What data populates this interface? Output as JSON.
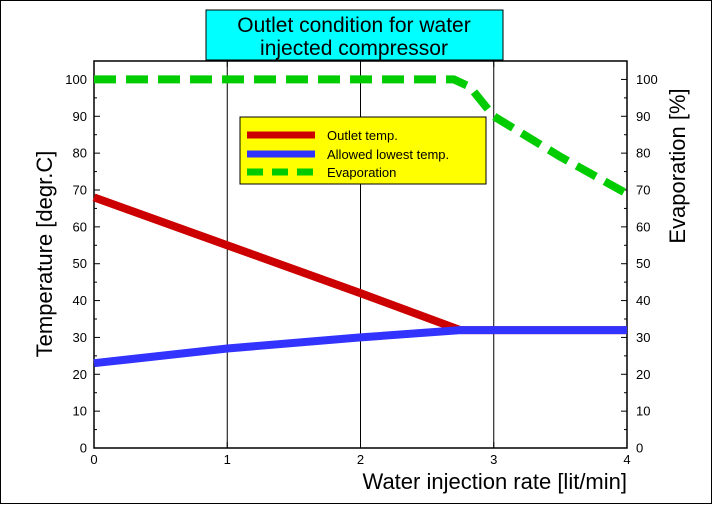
{
  "chart_data": {
    "type": "line",
    "title_lines": [
      "Outlet condition for water",
      "injected compressor"
    ],
    "xlabel": "Water injection rate [lit/min]",
    "ylabel_left": "Temperature [degr.C]",
    "ylabel_right": "Evaporation [%]",
    "xlim": [
      0,
      4
    ],
    "ylim": [
      0,
      105
    ],
    "ylim_right": [
      0,
      105
    ],
    "x_ticks": [
      0,
      1,
      2,
      3,
      4
    ],
    "y_ticks": [
      0,
      10,
      20,
      30,
      40,
      50,
      60,
      70,
      80,
      90,
      100
    ],
    "y_ticks_right": [
      0,
      10,
      20,
      30,
      40,
      50,
      60,
      70,
      80,
      90,
      100
    ],
    "grid": "vertical lines at x ticks",
    "legend_position": "upper-center",
    "series": [
      {
        "name": "Outlet temp.",
        "axis": "left",
        "color": "#cc0000",
        "style": "solid",
        "x": [
          0,
          1,
          2,
          2.75,
          3,
          4
        ],
        "y": [
          68,
          55,
          42,
          32,
          32,
          32
        ]
      },
      {
        "name": "Allowed  lowest temp.",
        "axis": "left",
        "color": "#3333ff",
        "style": "solid",
        "x": [
          0,
          1,
          2,
          2.75,
          3,
          4
        ],
        "y": [
          23,
          27,
          30,
          32,
          32,
          32
        ]
      },
      {
        "name": "Evaporation",
        "axis": "right",
        "color": "#00cc00",
        "style": "dashed",
        "x": [
          0,
          1,
          2,
          2.7,
          2.82,
          3,
          3.5,
          4
        ],
        "y": [
          100,
          100,
          100,
          100,
          98,
          90,
          79,
          69
        ]
      }
    ]
  },
  "colors": {
    "title_background": "#00ffff",
    "legend_background": "#ffff00"
  }
}
